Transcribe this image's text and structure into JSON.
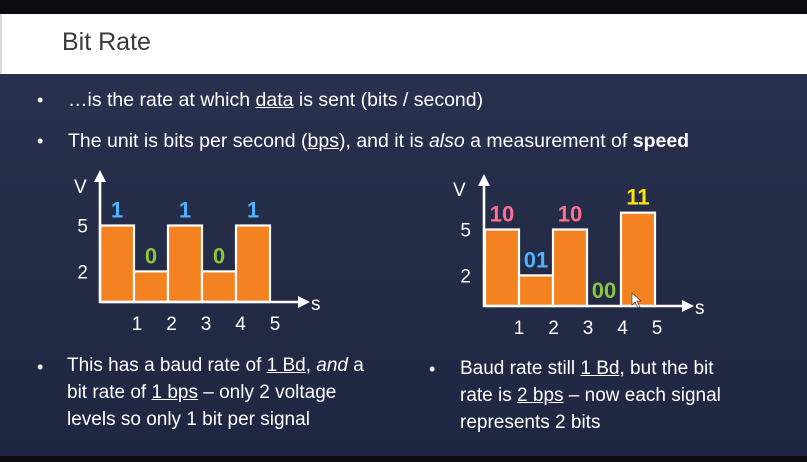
{
  "slide": {
    "title": "Bit Rate",
    "bullet1": {
      "before": "…is the rate at which ",
      "underlined": "data",
      "after": " is sent (bits / second)"
    },
    "bullet2": {
      "before": "The unit is bits per second (",
      "underlined": "bps",
      "middle": "), and it is ",
      "italic": "also",
      "middle2": " a measurement of ",
      "bold": "speed"
    },
    "bullet_glyph": "•",
    "caption_left": {
      "line1_a": "This has a baud rate of ",
      "line1_u": "1 Bd",
      "line1_b": ", ",
      "line1_i": "and",
      "line1_c": " a",
      "line2_a": "bit rate of ",
      "line2_u": "1 bps",
      "line2_b": " – only 2 voltage",
      "line3": "levels so only 1 bit per signal"
    },
    "caption_right": {
      "line1_a": "Baud rate still ",
      "line1_u": "1 Bd",
      "line1_b": ", but the bit",
      "line2_a": "rate is ",
      "line2_u": "2 bps",
      "line2_b": " – now each signal",
      "line3": "represents 2 bits"
    }
  },
  "chart_data": [
    {
      "type": "bar",
      "xlabel": "s",
      "ylabel": "V",
      "x_ticks": [
        "1",
        "2",
        "3",
        "4",
        "5"
      ],
      "y_ticks": [
        "5",
        "2"
      ],
      "values": [
        5,
        2,
        5,
        2,
        5
      ],
      "labels": [
        "1",
        "0",
        "1",
        "0",
        "1"
      ],
      "label_colors": [
        "#4db3ff",
        "#8cc63f",
        "#4db3ff",
        "#8cc63f",
        "#4db3ff"
      ],
      "bar_color": "#f58220"
    },
    {
      "type": "bar",
      "xlabel": "s",
      "ylabel": "V",
      "x_ticks": [
        "1",
        "2",
        "3",
        "4",
        "5"
      ],
      "y_ticks": [
        "5",
        "2"
      ],
      "values": [
        5,
        2,
        5,
        0,
        6.1
      ],
      "labels": [
        "10",
        "01",
        "10",
        "00",
        "11"
      ],
      "label_colors": [
        "#ff6f91",
        "#4db3ff",
        "#ff6f91",
        "#8cc63f",
        "#ffe600"
      ],
      "bar_color": "#f58220"
    }
  ]
}
